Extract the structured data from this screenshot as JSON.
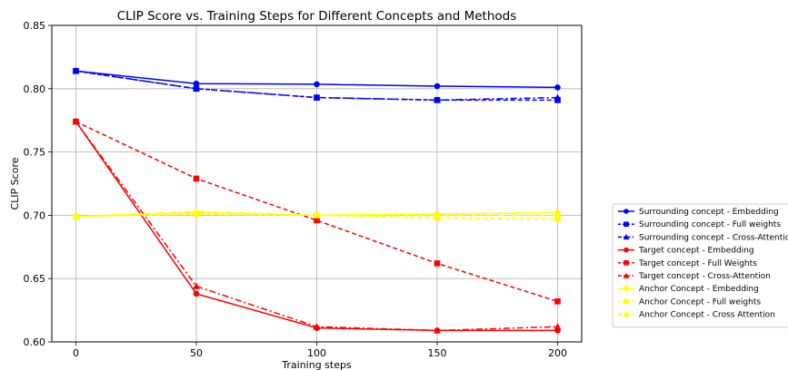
{
  "chart_data": {
    "type": "line",
    "title": "CLIP Score vs. Training Steps for Different Concepts and Methods",
    "xlabel": "Training steps",
    "ylabel": "CLIP Score",
    "x": [
      0,
      50,
      100,
      150,
      200
    ],
    "xlim": [
      -10,
      210
    ],
    "ylim": [
      0.6,
      0.85
    ],
    "xticks": [
      "0",
      "50",
      "100",
      "150",
      "200"
    ],
    "yticks": [
      "0.60",
      "0.65",
      "0.70",
      "0.75",
      "0.80",
      "0.85"
    ],
    "grid": true,
    "legend_position": "outside-right",
    "series": [
      {
        "name": "Surrounding concept - Embedding",
        "color": "#0000ff",
        "dash": "solid",
        "marker": "circle",
        "values": [
          0.814,
          0.804,
          0.8035,
          0.802,
          0.801
        ]
      },
      {
        "name": "Surrounding concept - Full weights",
        "color": "#0000ff",
        "dash": "dashed",
        "marker": "square",
        "values": [
          0.814,
          0.8,
          0.793,
          0.791,
          0.791
        ]
      },
      {
        "name": "Surrounding concept - Cross-Attention",
        "color": "#0000ff",
        "dash": "dashdot",
        "marker": "triangle",
        "values": [
          0.814,
          0.8,
          0.793,
          0.791,
          0.793
        ]
      },
      {
        "name": "Target concept - Embedding",
        "color": "#ff0000",
        "dash": "solid",
        "marker": "circle",
        "values": [
          0.774,
          0.638,
          0.611,
          0.609,
          0.609
        ]
      },
      {
        "name": "Target concept - Full Weights",
        "color": "#ff0000",
        "dash": "dashed",
        "marker": "square",
        "values": [
          0.774,
          0.729,
          0.696,
          0.662,
          0.632
        ]
      },
      {
        "name": "Target concept - Cross-Attention",
        "color": "#ff0000",
        "dash": "dashdot",
        "marker": "triangle",
        "values": [
          0.774,
          0.644,
          0.612,
          0.609,
          0.612
        ]
      },
      {
        "name": "Anchor Concept - Embedding",
        "color": "#ffff00",
        "dash": "solid",
        "marker": "circle",
        "values": [
          0.699,
          0.702,
          0.7,
          0.701,
          0.702
        ]
      },
      {
        "name": "Anchor Concept - Full weights",
        "color": "#ffff00",
        "dash": "dashed",
        "marker": "square",
        "values": [
          0.699,
          0.701,
          0.7,
          0.698,
          0.697
        ]
      },
      {
        "name": "Anchor Concept - Cross Attention",
        "color": "#ffff00",
        "dash": "dashdot",
        "marker": "triangle",
        "values": [
          0.699,
          0.703,
          0.7,
          0.7,
          0.7
        ]
      }
    ]
  }
}
